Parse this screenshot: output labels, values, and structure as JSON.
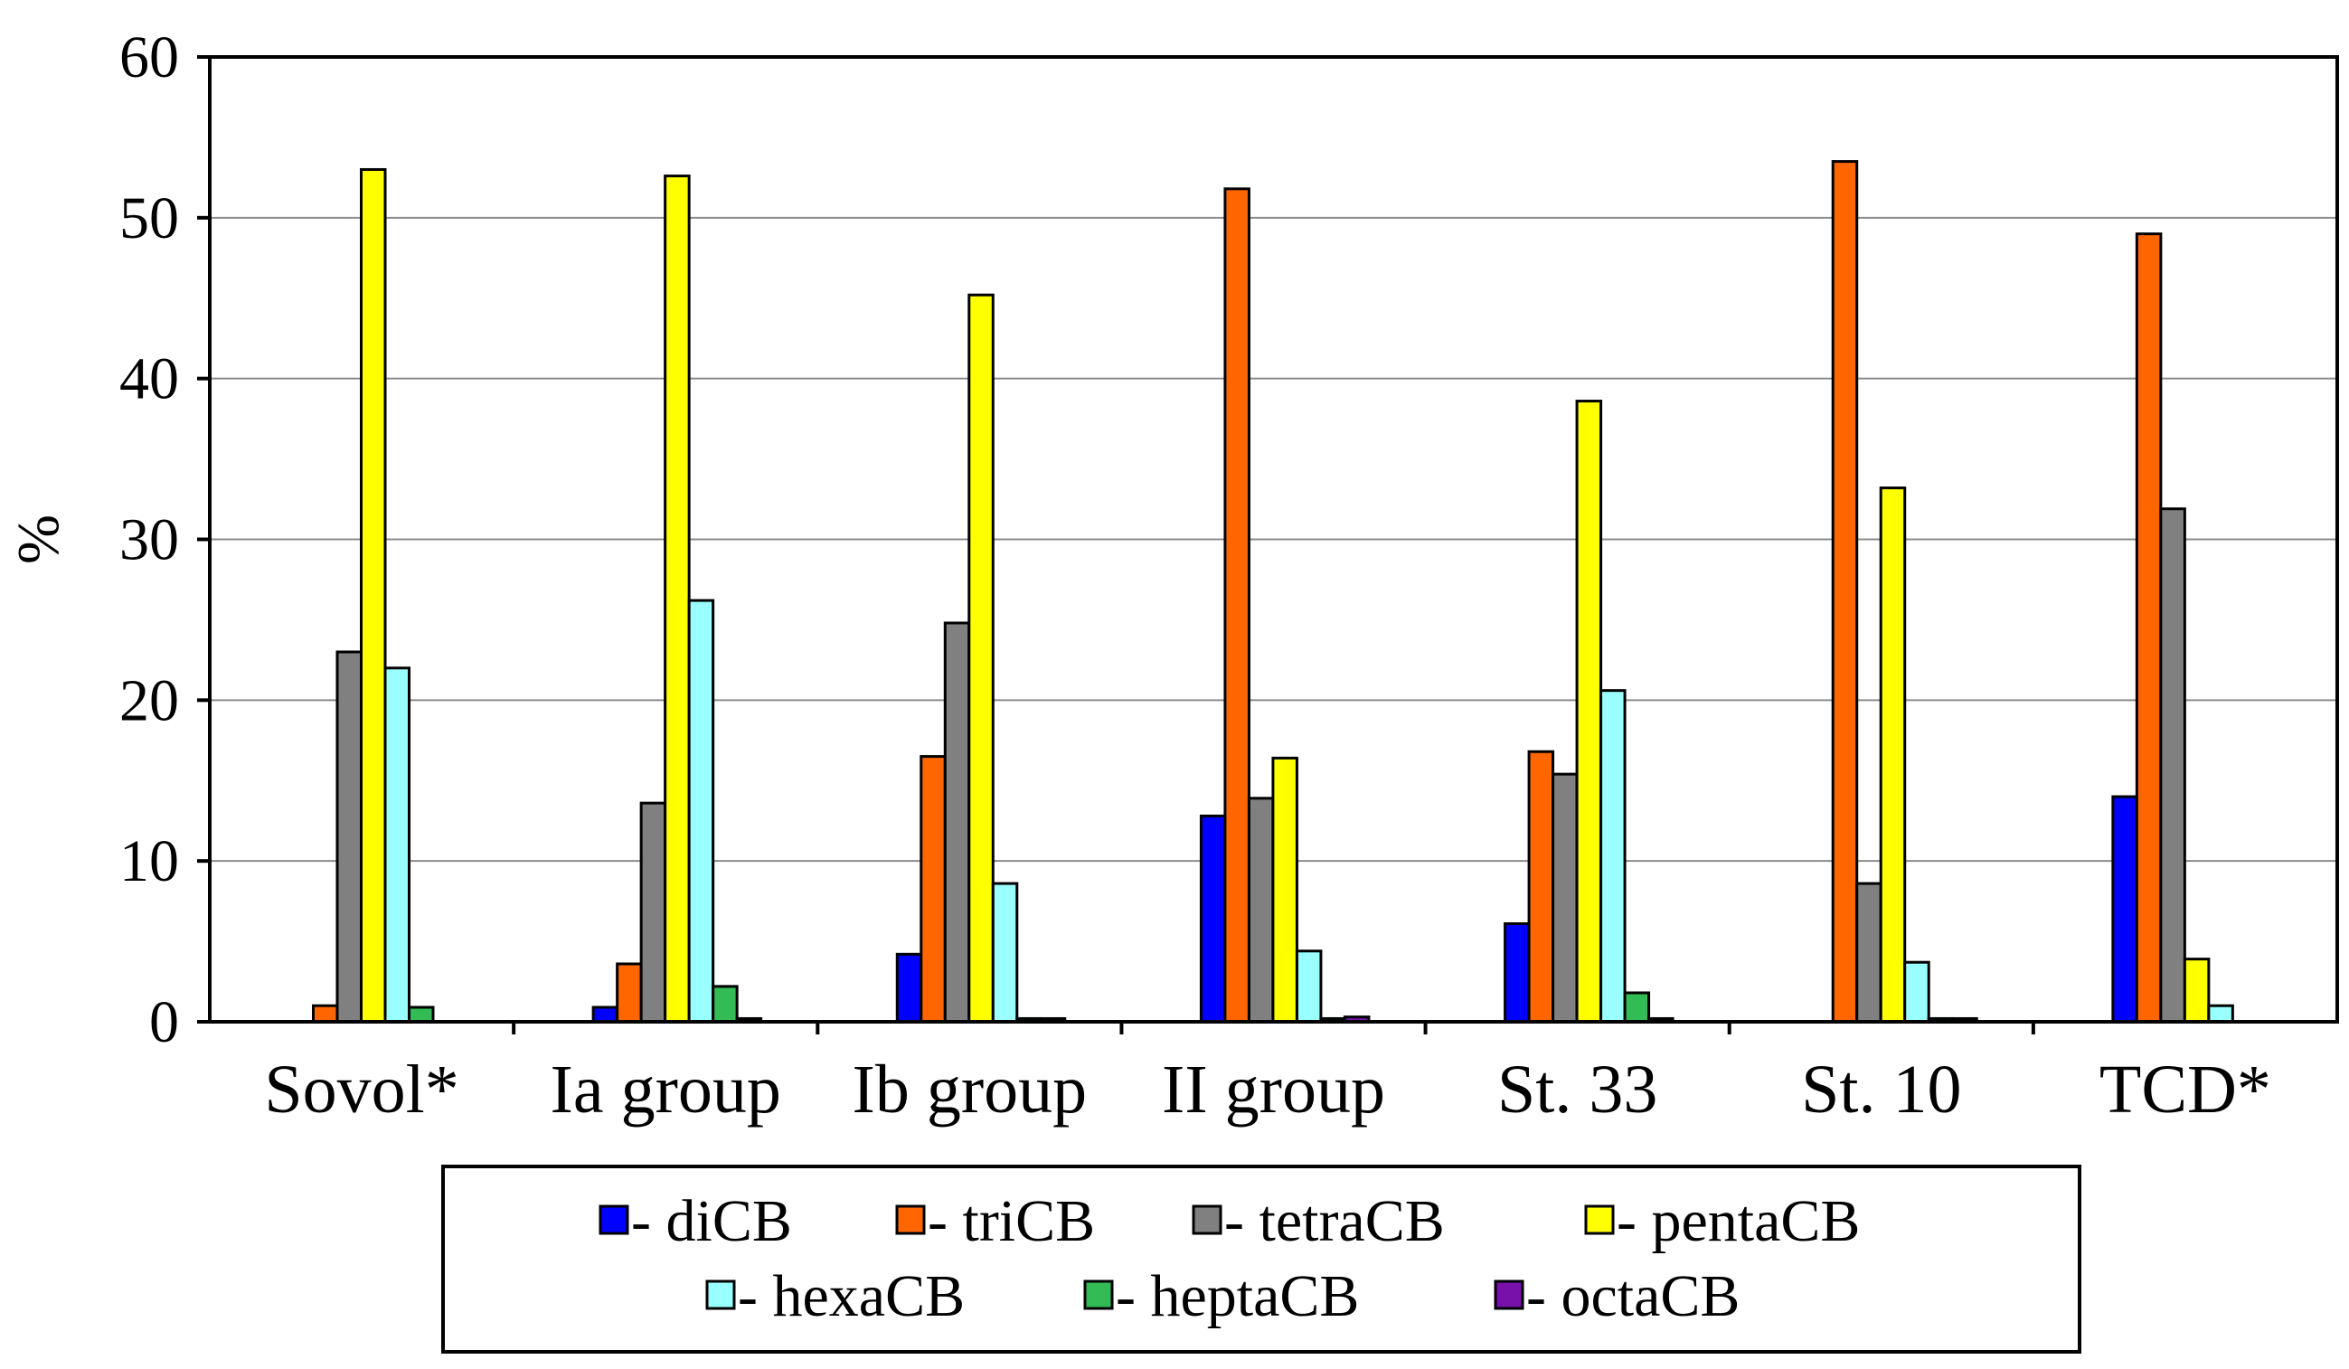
{
  "chart_data": {
    "type": "bar",
    "title": "",
    "xlabel": "",
    "ylabel": "%",
    "ylim": [
      0,
      60
    ],
    "yticks": [
      0,
      10,
      20,
      30,
      40,
      50,
      60
    ],
    "grid": true,
    "legend_position": "bottom",
    "categories": [
      "Sovol*",
      "Ia group",
      "Ib group",
      "II group",
      "St. 33",
      "St. 10",
      "TCD*"
    ],
    "series": [
      {
        "name": "- diCB",
        "color": "#0000ff",
        "values": [
          0,
          0.9,
          4.2,
          12.8,
          6.1,
          0,
          14.0
        ]
      },
      {
        "name": "- triCB",
        "color": "#ff6600",
        "values": [
          1.0,
          3.6,
          16.5,
          51.8,
          16.8,
          53.5,
          49.0
        ]
      },
      {
        "name": "- tetraCB",
        "color": "#808080",
        "values": [
          23.0,
          13.6,
          24.8,
          13.9,
          15.4,
          8.6,
          31.9
        ]
      },
      {
        "name": "- pentaCB",
        "color": "#ffff00",
        "values": [
          53.0,
          52.6,
          45.2,
          16.4,
          38.6,
          33.2,
          3.9
        ]
      },
      {
        "name": "- hexaCB",
        "color": "#99ffff",
        "values": [
          22.0,
          26.2,
          8.6,
          4.4,
          20.6,
          3.7,
          1.0
        ]
      },
      {
        "name": "- heptaCB",
        "color": "#33bb55",
        "values": [
          0.9,
          2.2,
          0.2,
          0.2,
          1.8,
          0.2,
          0
        ]
      },
      {
        "name": "- octaCB",
        "color": "#7711aa",
        "values": [
          0,
          0.2,
          0.2,
          0.3,
          0.2,
          0.2,
          0
        ]
      }
    ]
  }
}
